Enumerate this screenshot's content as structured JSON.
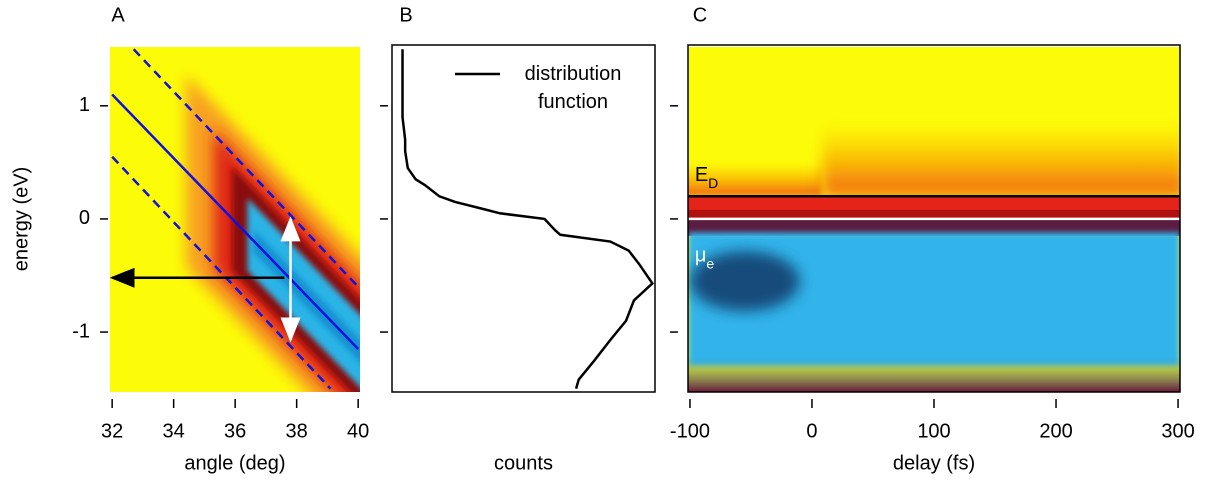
{
  "chart_data": [
    {
      "type": "image-lines",
      "title": "A",
      "xlabel": "angle (deg)",
      "ylabel": "energy (eV)",
      "xlim": [
        31.93,
        40.06
      ],
      "ylim": [
        -1.53,
        1.52
      ],
      "xticks": [
        32,
        34,
        36,
        38,
        40
      ],
      "yticks": [
        -1,
        0,
        1
      ],
      "lines": [
        {
          "x": [
            32,
            40
          ],
          "y": [
            1.1,
            -1.15
          ],
          "color": "#1010e0",
          "dash": false
        },
        {
          "x": [
            32.7,
            40
          ],
          "y": [
            1.5,
            -0.6
          ],
          "color": "#1010e0",
          "dash": true
        },
        {
          "x": [
            32,
            39.1
          ],
          "y": [
            0.55,
            -1.5
          ],
          "color": "#1010e0",
          "dash": true
        }
      ],
      "arrows": [
        {
          "x": [
            37.6,
            32
          ],
          "y": [
            -0.52,
            -0.52
          ],
          "color": "#000000",
          "heads": 1
        },
        {
          "x": [
            37.8,
            37.8
          ],
          "y": [
            0.0,
            -1.07
          ],
          "color": "#ffffff",
          "heads": 2
        }
      ]
    },
    {
      "type": "line",
      "title": "B",
      "xlabel": "counts",
      "xlim": [
        0,
        1
      ],
      "ylim": [
        -1.53,
        1.52
      ],
      "yticks": [
        -1,
        0,
        1
      ],
      "series": [
        {
          "name": "distribution function",
          "color": "#000000",
          "y": [
            1.5,
            1.2,
            0.9,
            0.7,
            0.6,
            0.45,
            0.35,
            0.3,
            0.2,
            0.15,
            0.08,
            0.05,
            0.0,
            -0.1,
            -0.14,
            -0.2,
            -0.28,
            -0.4,
            -0.57,
            -0.72,
            -0.9,
            -1.07,
            -1.25,
            -1.42,
            -1.5
          ],
          "values": [
            0.04,
            0.04,
            0.04,
            0.05,
            0.05,
            0.06,
            0.09,
            0.125,
            0.18,
            0.24,
            0.36,
            0.41,
            0.58,
            0.62,
            0.64,
            0.83,
            0.9,
            0.94,
            0.99,
            0.92,
            0.89,
            0.83,
            0.77,
            0.71,
            0.7
          ]
        }
      ]
    },
    {
      "type": "heatmap",
      "title": "C",
      "xlabel": "delay (fs)",
      "xlim": [
        -101.6,
        301.6
      ],
      "ylim": [
        -1.53,
        1.52
      ],
      "xticks": [
        -100,
        0,
        100,
        200,
        300
      ],
      "yticks": [
        -1,
        0,
        1
      ],
      "hlines": [
        {
          "y": 0.2,
          "color": "#000000"
        },
        {
          "y": 0.0,
          "color": "#ffffff"
        }
      ],
      "annotations": [
        {
          "text": "E",
          "sub": "D",
          "x": -96,
          "y": 0.38,
          "color": "#000000"
        },
        {
          "text": "μ",
          "sub": "e",
          "x": -96,
          "y": -0.33,
          "color": "#ffffff"
        }
      ]
    }
  ]
}
